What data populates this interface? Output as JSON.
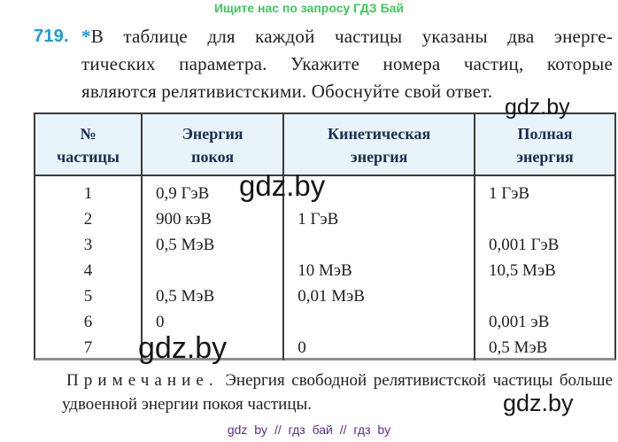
{
  "banner": {
    "text": "Ищите нас по запросу ГДЗ Бай"
  },
  "problem": {
    "number": "719.",
    "star": "*",
    "line1": "В таблице для каждой частицы указаны два энерге-",
    "line2": "тических параметра. Укажите номера частиц, которые",
    "line3": "являются релятивистскими. Обоснуйте свой ответ."
  },
  "table": {
    "headers": [
      {
        "line1": "№",
        "line2": "частицы"
      },
      {
        "line1": "Энергия",
        "line2": "покоя"
      },
      {
        "line1": "Кинетическая",
        "line2": "энергия"
      },
      {
        "line1": "Полная",
        "line2": "энергия"
      }
    ],
    "rows": [
      {
        "num": "1",
        "rest": "0,9 ГэВ",
        "kinetic": "",
        "full": "1 ГэВ"
      },
      {
        "num": "2",
        "rest": "900 кэВ",
        "kinetic": "1 ГэВ",
        "full": ""
      },
      {
        "num": "3",
        "rest": "0,5 МэВ",
        "kinetic": "",
        "full": "0,001 ГэВ"
      },
      {
        "num": "4",
        "rest": "",
        "kinetic": "10 МэВ",
        "full": "10,5 МэВ"
      },
      {
        "num": "5",
        "rest": "0,5 МэВ",
        "kinetic": "0,01 МэВ",
        "full": ""
      },
      {
        "num": "6",
        "rest": "0",
        "kinetic": "",
        "full": "0,001 эВ"
      },
      {
        "num": "7",
        "rest": "",
        "kinetic": "0",
        "full": "0,5 МэВ"
      }
    ]
  },
  "note": {
    "label": "Примечание.",
    "text": " Энергия свободной релятивистской частицы больше удвоенной энергии покоя частицы."
  },
  "watermark": {
    "text": "gdz.by"
  },
  "footer": {
    "text": "gdz by // гдз бай // гдз by"
  },
  "colors": {
    "banner_green": "#3ec95b",
    "problem_number_blue": "#1c9ad6",
    "table_header_bg": "#e9f4fa",
    "table_header_text": "#1c2c4e",
    "table_border": "#3b3b3b",
    "footer_purple": "#5b2c91"
  }
}
